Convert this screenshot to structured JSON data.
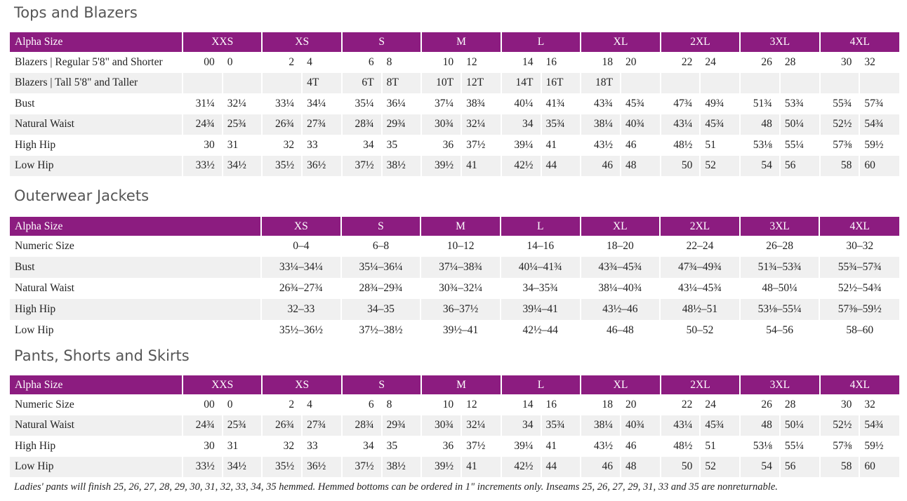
{
  "sections": [
    {
      "title": "Tops and Blazers",
      "table": {
        "header": [
          "Alpha Size",
          "XXS",
          "XS",
          "S",
          "M",
          "L",
          "XL",
          "2XL",
          "3XL",
          "4XL"
        ],
        "rows": [
          {
            "label": "Blazers | Regular 5'8\" and Shorter",
            "values": [
              "00",
              "0",
              "2",
              "4",
              "6",
              "8",
              "10",
              "12",
              "14",
              "16",
              "18",
              "20",
              "22",
              "24",
              "26",
              "28",
              "30",
              "32"
            ]
          },
          {
            "label": "Blazers | Tall 5'8\" and Taller",
            "values": [
              null,
              null,
              null,
              "4T",
              "6T",
              "8T",
              "10T",
              "12T",
              "14T",
              "16T",
              "18T",
              null,
              null,
              null,
              null,
              null,
              null,
              null
            ]
          },
          {
            "label": "Bust",
            "values": [
              "31¼",
              "32¼",
              "33¼",
              "34¼",
              "35¼",
              "36¼",
              "37¼",
              "38¾",
              "40¼",
              "41¾",
              "43¾",
              "45¾",
              "47¾",
              "49¾",
              "51¾",
              "53¾",
              "55¾",
              "57¾"
            ]
          },
          {
            "label": "Natural Waist",
            "values": [
              "24¾",
              "25¾",
              "26¾",
              "27¾",
              "28¾",
              "29¾",
              "30¾",
              "32¼",
              "34",
              "35¾",
              "38¼",
              "40¾",
              "43¼",
              "45¾",
              "48",
              "50¼",
              "52½",
              "54¾"
            ]
          },
          {
            "label": "High Hip",
            "values": [
              "30",
              "31",
              "32",
              "33",
              "34",
              "35",
              "36",
              "37½",
              "39¼",
              "41",
              "43½",
              "46",
              "48½",
              "51",
              "53⅛",
              "55¼",
              "57⅜",
              "59½"
            ]
          },
          {
            "label": "Low Hip",
            "values": [
              "33½",
              "34½",
              "35½",
              "36½",
              "37½",
              "38½",
              "39½",
              "41",
              "42½",
              "44",
              "46",
              "48",
              "50",
              "52",
              "54",
              "56",
              "58",
              "60"
            ]
          }
        ]
      }
    },
    {
      "title": "Outerwear Jackets",
      "table": {
        "header": [
          "Alpha Size",
          "XS",
          "S",
          "M",
          "L",
          "XL",
          "2XL",
          "3XL",
          "4XL"
        ],
        "rows": [
          {
            "label": "Numeric Size",
            "values": [
              "0–4",
              "6–8",
              "10–12",
              "14–16",
              "18–20",
              "22–24",
              "26–28",
              "30–32"
            ]
          },
          {
            "label": "Bust",
            "values": [
              "33¼–34¼",
              "35¼–36¼",
              "37¼–38¾",
              "40¼–41¾",
              "43¾–45¾",
              "47¾–49¾",
              "51¾–53¾",
              "55¾–57¾"
            ]
          },
          {
            "label": "Natural Waist",
            "values": [
              "26¾–27¾",
              "28¾–29¾",
              "30¾–32¼",
              "34–35¾",
              "38¼–40¾",
              "43¼–45¾",
              "48–50¼",
              "52½–54¾"
            ]
          },
          {
            "label": "High Hip",
            "values": [
              "32–33",
              "34–35",
              "36–37½",
              "39¼–41",
              "43½–46",
              "48½–51",
              "53⅛–55¼",
              "57⅜–59½"
            ]
          },
          {
            "label": "Low Hip",
            "values": [
              "35½–36½",
              "37½–38½",
              "39½–41",
              "42½–44",
              "46–48",
              "50–52",
              "54–56",
              "58–60"
            ]
          }
        ]
      }
    },
    {
      "title": "Pants, Shorts and Skirts",
      "table": {
        "header": [
          "Alpha Size",
          "XXS",
          "XS",
          "S",
          "M",
          "L",
          "XL",
          "2XL",
          "3XL",
          "4XL"
        ],
        "rows": [
          {
            "label": "Numeric Size",
            "values": [
              "00",
              "0",
              "2",
              "4",
              "6",
              "8",
              "10",
              "12",
              "14",
              "16",
              "18",
              "20",
              "22",
              "24",
              "26",
              "28",
              "30",
              "32"
            ]
          },
          {
            "label": "Natural Waist",
            "values": [
              "24¾",
              "25¾",
              "26¾",
              "27¾",
              "28¾",
              "29¾",
              "30¾",
              "32¼",
              "34",
              "35¾",
              "38¼",
              "40¾",
              "43¼",
              "45¾",
              "48",
              "50¼",
              "52½",
              "54¾"
            ]
          },
          {
            "label": "High Hip",
            "values": [
              "30",
              "31",
              "32",
              "33",
              "34",
              "35",
              "36",
              "37½",
              "39¼",
              "41",
              "43½",
              "46",
              "48½",
              "51",
              "53⅛",
              "55¼",
              "57⅜",
              "59½"
            ]
          },
          {
            "label": "Low Hip",
            "values": [
              "33½",
              "34½",
              "35½",
              "36½",
              "37½",
              "38½",
              "39½",
              "41",
              "42½",
              "44",
              "46",
              "48",
              "50",
              "52",
              "54",
              "56",
              "58",
              "60"
            ]
          }
        ]
      }
    }
  ],
  "footnote": "Ladies' pants will finish 25, 26, 27, 28, 29, 30, 31, 32, 33, 34, 35 hemmed. Hemmed bottoms can be ordered in 1\" increments only. Inseams 25, 26, 27, 29, 31, 33 and 35 are nonreturnable."
}
